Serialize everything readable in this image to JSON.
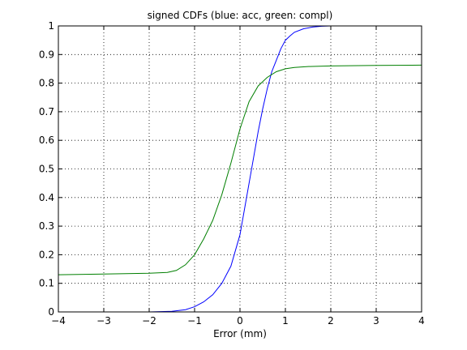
{
  "chart_data": {
    "type": "line",
    "title": "signed CDFs (blue: acc, green: compl)",
    "xlabel": "Error (mm)",
    "ylabel": "",
    "xlim": [
      -4,
      4
    ],
    "ylim": [
      0,
      1
    ],
    "xticks": [
      -4,
      -3,
      -2,
      -1,
      0,
      1,
      2,
      3,
      4
    ],
    "yticks": [
      0,
      0.1,
      0.2,
      0.3,
      0.4,
      0.5,
      0.6,
      0.7,
      0.8,
      0.9,
      1
    ],
    "xtick_labels": [
      "−4",
      "−3",
      "−2",
      "−1",
      "0",
      "1",
      "2",
      "3",
      "4"
    ],
    "ytick_labels": [
      "0",
      "0.1",
      "0.2",
      "0.3",
      "0.4",
      "0.5",
      "0.6",
      "0.7",
      "0.8",
      "0.9",
      "1"
    ],
    "grid": true,
    "series": [
      {
        "color": "#0000ff",
        "x": [
          -4,
          -2,
          -1.5,
          -1.2,
          -1.0,
          -0.8,
          -0.6,
          -0.4,
          -0.2,
          0,
          0.1,
          0.2,
          0.3,
          0.4,
          0.5,
          0.6,
          0.7,
          0.8,
          0.9,
          1.0,
          1.1,
          1.2,
          1.4,
          1.6,
          1.8,
          2.0,
          3.0,
          4.0
        ],
        "y": [
          0,
          0,
          0.002,
          0.008,
          0.018,
          0.035,
          0.06,
          0.1,
          0.16,
          0.27,
          0.36,
          0.45,
          0.54,
          0.63,
          0.71,
          0.78,
          0.84,
          0.88,
          0.92,
          0.95,
          0.965,
          0.978,
          0.99,
          0.996,
          0.999,
          1.0,
          1.0,
          1.0
        ]
      },
      {
        "color": "#007f00",
        "x": [
          -4,
          -2,
          -1.6,
          -1.4,
          -1.2,
          -1.0,
          -0.8,
          -0.6,
          -0.4,
          -0.2,
          0,
          0.2,
          0.4,
          0.6,
          0.8,
          1.0,
          1.2,
          1.5,
          2.0,
          3.0,
          4.0
        ],
        "y": [
          0.13,
          0.135,
          0.138,
          0.145,
          0.165,
          0.2,
          0.255,
          0.32,
          0.41,
          0.52,
          0.64,
          0.735,
          0.79,
          0.82,
          0.84,
          0.85,
          0.855,
          0.858,
          0.86,
          0.862,
          0.863
        ]
      }
    ]
  }
}
